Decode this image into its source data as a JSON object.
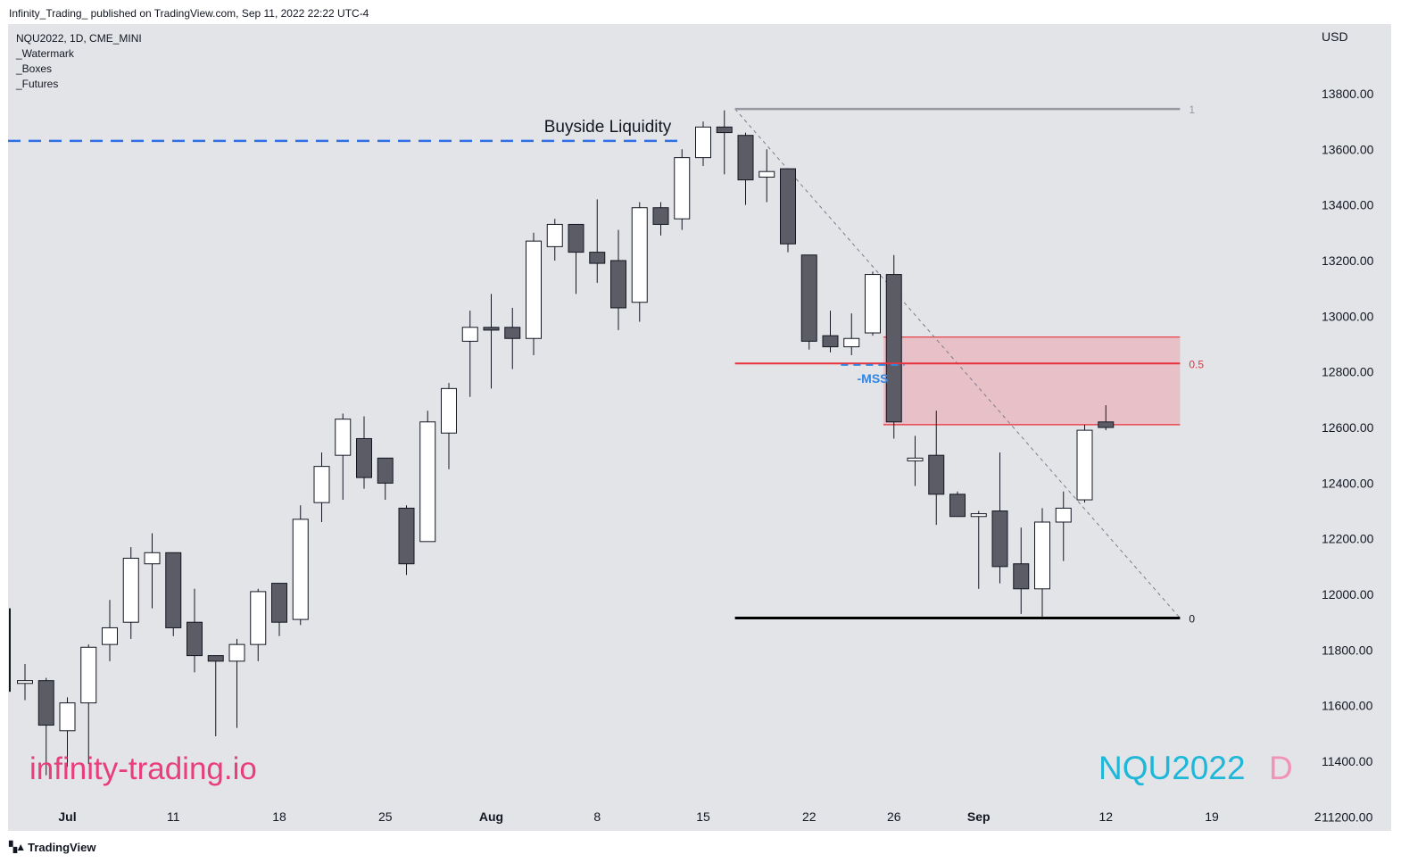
{
  "header": {
    "published_line": "Infinity_Trading_ published on TradingView.com, Sep 11, 2022 22:22 UTC-4"
  },
  "legend": {
    "symbol_line": "NQU2022, 1D, CME_MINI",
    "indicators": [
      "_Watermark",
      "_Boxes",
      "_Futures"
    ]
  },
  "footer": {
    "brand": "TradingView"
  },
  "colors": {
    "background": "#e3e4e8",
    "bull_fill": "#ffffff",
    "bear_fill": "#5b5c66",
    "wick": "#131722",
    "fvg_fill": "#e8b7bf",
    "fvg_line": "#e8313b",
    "liquidity_line": "#2f6fe6",
    "watermark_site": "#e83e7a",
    "watermark_symbol": "#1fb7d8",
    "watermark_tf": "#f293b6",
    "fib_one": "#9598a1",
    "mss": "#2f86e6"
  },
  "chart_data": {
    "type": "candlestick",
    "symbol": "NQU2022",
    "timeframe": "1D",
    "exchange": "CME_MINI",
    "currency": "USD",
    "ylim": [
      11150,
      14050
    ],
    "y_ticks": [
      13800,
      13600,
      13400,
      13200,
      13000,
      12800,
      12600,
      12400,
      12200,
      12000,
      11800,
      11600,
      11400,
      11200
    ],
    "y_tick_labels": [
      "13800.00",
      "13600.00",
      "13400.00",
      "13200.00",
      "13000.00",
      "12800.00",
      "12600.00",
      "12400.00",
      "12200.00",
      "12000.00",
      "11800.00",
      "11600.00",
      "11400.00",
      "11200.00"
    ],
    "x_tick_labels": [
      {
        "label": "Jul",
        "bold": true,
        "bar": 2
      },
      {
        "label": "11",
        "bold": false,
        "bar": 7
      },
      {
        "label": "18",
        "bold": false,
        "bar": 12
      },
      {
        "label": "25",
        "bold": false,
        "bar": 17
      },
      {
        "label": "Aug",
        "bold": true,
        "bar": 22
      },
      {
        "label": "8",
        "bold": false,
        "bar": 27
      },
      {
        "label": "15",
        "bold": false,
        "bar": 32
      },
      {
        "label": "22",
        "bold": false,
        "bar": 37
      },
      {
        "label": "26",
        "bold": false,
        "bar": 41
      },
      {
        "label": "Sep",
        "bold": true,
        "bar": 45
      },
      {
        "label": "12",
        "bold": false,
        "bar": 51
      },
      {
        "label": "19",
        "bold": false,
        "bar": 56
      },
      {
        "label": "2",
        "bold": false,
        "bar": 61
      }
    ],
    "candles": [
      {
        "o": 11680,
        "h": 11750,
        "l": 11620,
        "c": 11690
      },
      {
        "o": 11690,
        "h": 11700,
        "l": 11350,
        "c": 11530
      },
      {
        "o": 11510,
        "h": 11630,
        "l": 11380,
        "c": 11610
      },
      {
        "o": 11610,
        "h": 11820,
        "l": 11390,
        "c": 11810
      },
      {
        "o": 11820,
        "h": 11980,
        "l": 11760,
        "c": 11880
      },
      {
        "o": 11900,
        "h": 12170,
        "l": 11840,
        "c": 12130
      },
      {
        "o": 12110,
        "h": 12220,
        "l": 11950,
        "c": 12150
      },
      {
        "o": 12150,
        "h": 12150,
        "l": 11850,
        "c": 11880
      },
      {
        "o": 11900,
        "h": 12020,
        "l": 11720,
        "c": 11780
      },
      {
        "o": 11780,
        "h": 11780,
        "l": 11490,
        "c": 11760
      },
      {
        "o": 11760,
        "h": 11840,
        "l": 11520,
        "c": 11820
      },
      {
        "o": 11820,
        "h": 12020,
        "l": 11760,
        "c": 12010
      },
      {
        "o": 12040,
        "h": 12040,
        "l": 11850,
        "c": 11900
      },
      {
        "o": 11910,
        "h": 12320,
        "l": 11890,
        "c": 12270
      },
      {
        "o": 12330,
        "h": 12510,
        "l": 12260,
        "c": 12460
      },
      {
        "o": 12500,
        "h": 12650,
        "l": 12340,
        "c": 12630
      },
      {
        "o": 12560,
        "h": 12640,
        "l": 12380,
        "c": 12420
      },
      {
        "o": 12490,
        "h": 12490,
        "l": 12340,
        "c": 12400
      },
      {
        "o": 12310,
        "h": 12320,
        "l": 12070,
        "c": 12110
      },
      {
        "o": 12190,
        "h": 12660,
        "l": 12190,
        "c": 12620
      },
      {
        "o": 12580,
        "h": 12760,
        "l": 12450,
        "c": 12740
      },
      {
        "o": 12910,
        "h": 13020,
        "l": 12710,
        "c": 12960
      },
      {
        "o": 12960,
        "h": 13080,
        "l": 12740,
        "c": 12950
      },
      {
        "o": 12960,
        "h": 13030,
        "l": 12810,
        "c": 12920
      },
      {
        "o": 12920,
        "h": 13300,
        "l": 12860,
        "c": 13270
      },
      {
        "o": 13250,
        "h": 13350,
        "l": 13200,
        "c": 13330
      },
      {
        "o": 13330,
        "h": 13330,
        "l": 13080,
        "c": 13230
      },
      {
        "o": 13230,
        "h": 13420,
        "l": 13120,
        "c": 13190
      },
      {
        "o": 13200,
        "h": 13310,
        "l": 12950,
        "c": 13030
      },
      {
        "o": 13050,
        "h": 13410,
        "l": 12980,
        "c": 13390
      },
      {
        "o": 13390,
        "h": 13410,
        "l": 13290,
        "c": 13330
      },
      {
        "o": 13350,
        "h": 13600,
        "l": 13310,
        "c": 13570
      },
      {
        "o": 13570,
        "h": 13700,
        "l": 13540,
        "c": 13680
      },
      {
        "o": 13680,
        "h": 13740,
        "l": 13510,
        "c": 13660
      },
      {
        "o": 13650,
        "h": 13660,
        "l": 13400,
        "c": 13490
      },
      {
        "o": 13500,
        "h": 13600,
        "l": 13410,
        "c": 13520
      },
      {
        "o": 13530,
        "h": 13530,
        "l": 13230,
        "c": 13260
      },
      {
        "o": 13220,
        "h": 13220,
        "l": 12880,
        "c": 12910
      },
      {
        "o": 12930,
        "h": 13020,
        "l": 12870,
        "c": 12890
      },
      {
        "o": 12890,
        "h": 13010,
        "l": 12860,
        "c": 12920
      },
      {
        "o": 12940,
        "h": 13160,
        "l": 12930,
        "c": 13150
      },
      {
        "o": 13150,
        "h": 13220,
        "l": 12560,
        "c": 12620
      },
      {
        "o": 12480,
        "h": 12570,
        "l": 12390,
        "c": 12490
      },
      {
        "o": 12500,
        "h": 12660,
        "l": 12250,
        "c": 12360
      },
      {
        "o": 12360,
        "h": 12370,
        "l": 12280,
        "c": 12280
      },
      {
        "o": 12280,
        "h": 12300,
        "l": 12020,
        "c": 12290
      },
      {
        "o": 12300,
        "h": 12510,
        "l": 12040,
        "c": 12100
      },
      {
        "o": 12110,
        "h": 12240,
        "l": 11930,
        "c": 12020
      },
      {
        "o": 12020,
        "h": 12310,
        "l": 11920,
        "c": 12260
      },
      {
        "o": 12260,
        "h": 12370,
        "l": 12120,
        "c": 12310
      },
      {
        "o": 12340,
        "h": 12610,
        "l": 12330,
        "c": 12590
      },
      {
        "o": 12620,
        "h": 12680,
        "l": 12590,
        "c": 12600
      }
    ],
    "annotations": {
      "buyside_liquidity": {
        "label": "Buyside Liquidity",
        "price": 13630,
        "from_bar": 0,
        "to_bar": 31
      },
      "fib_top": {
        "label": "1",
        "price": 13745,
        "from_bar": 33.5,
        "to_bar": 54.5
      },
      "fib_bottom": {
        "label": "0",
        "price": 11915,
        "from_bar": 33.5,
        "to_bar": 54.5
      },
      "fib_mid": {
        "label": "0.5",
        "price": 12830,
        "from_bar": 33.5,
        "to_bar": 54.5
      },
      "fvg_box": {
        "top": 12925,
        "bottom": 12610,
        "from_bar": 40.5,
        "to_bar": 54.5
      },
      "mss": {
        "label": "-MSS",
        "price": 12825,
        "from_bar": 38.5,
        "to_bar": 41.5
      },
      "trendline": {
        "from_bar": 33.5,
        "from_price": 13745,
        "to_bar": 54.5,
        "to_price": 11915
      }
    },
    "watermarks": {
      "site": "infinity-trading.io",
      "symbol": "NQU2022",
      "timeframe": "D"
    }
  }
}
